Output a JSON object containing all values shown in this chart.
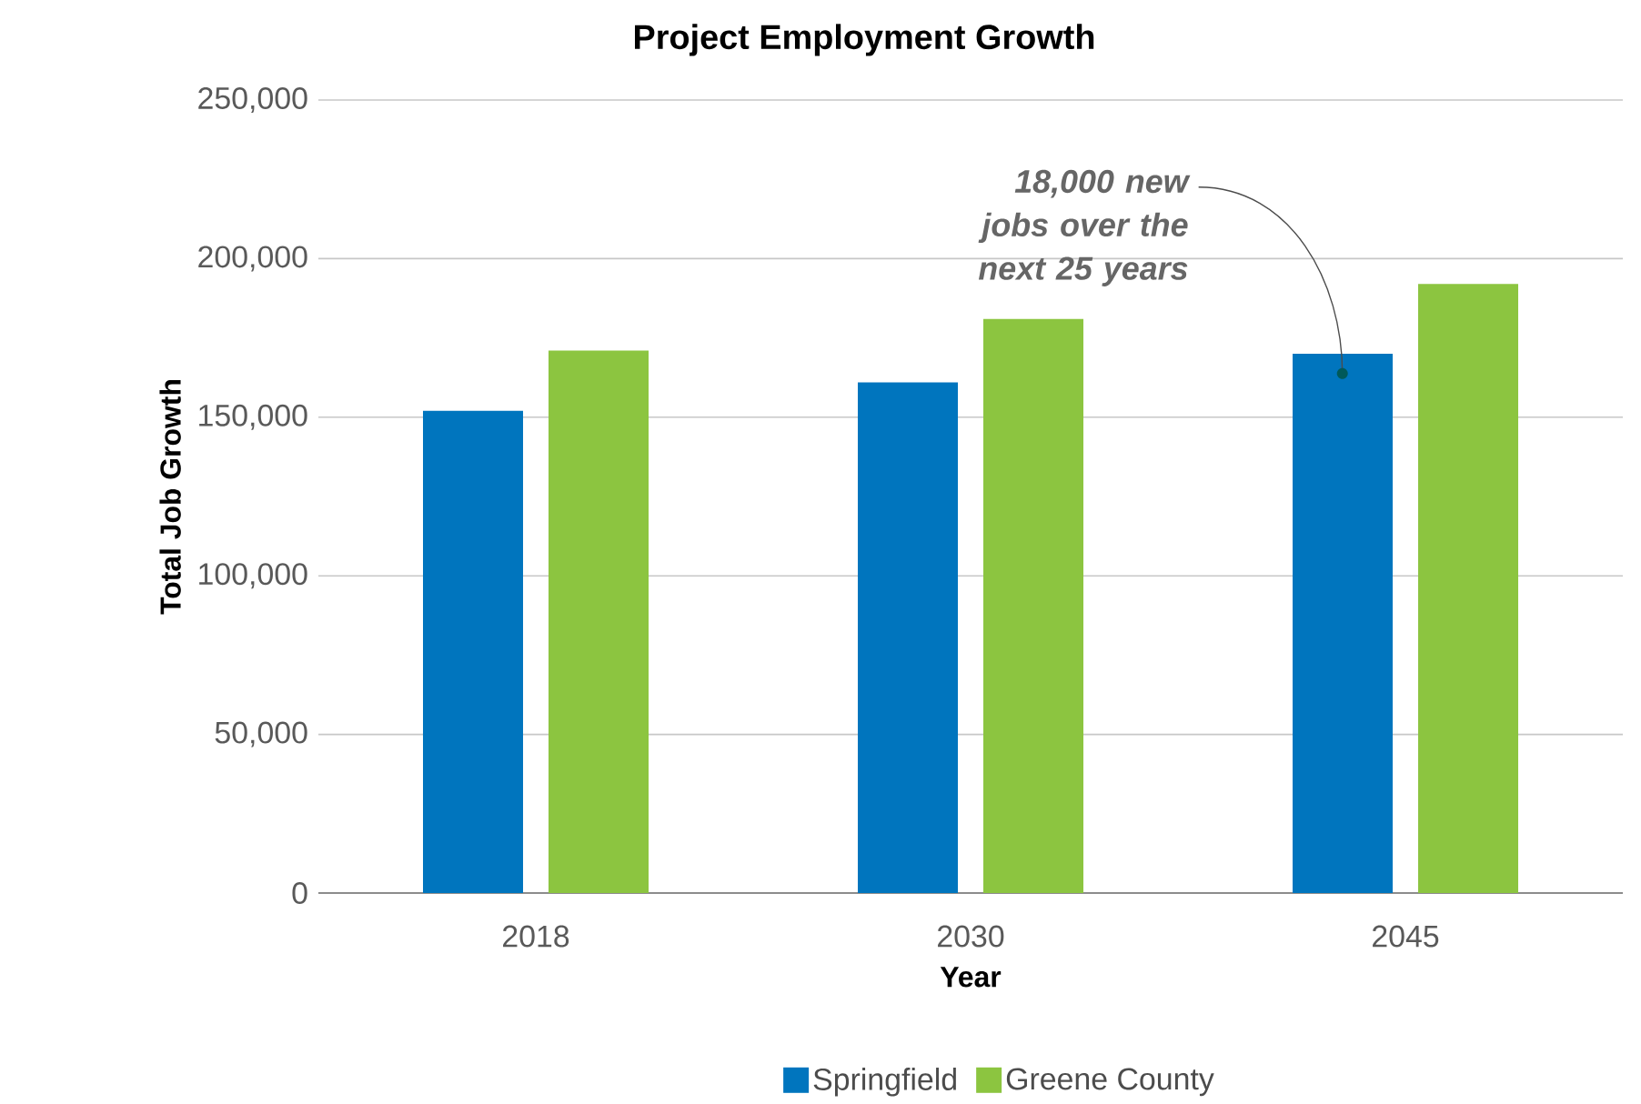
{
  "chart_data": {
    "type": "bar",
    "title": "Project Employment Growth",
    "xlabel": "Year",
    "ylabel": "Total Job Growth",
    "categories": [
      "2018",
      "2030",
      "2045"
    ],
    "series": [
      {
        "name": "Springfield",
        "color": "#0075be",
        "values": [
          152000,
          161000,
          170000
        ]
      },
      {
        "name": "Greene County",
        "color": "#8cc540",
        "values": [
          171000,
          181000,
          192000
        ]
      }
    ],
    "ylim": [
      0,
      250000
    ],
    "yticks": [
      0,
      {
        "value": 50000,
        "label": "50,000"
      },
      {
        "value": 100000,
        "label": "100,000"
      },
      {
        "value": 150000,
        "label": "150,000"
      },
      {
        "value": 200000,
        "label": "200,000"
      },
      {
        "value": 250000,
        "label": "250,000"
      }
    ],
    "grid": "y",
    "legend": "bottom",
    "annotations": [
      "18,000 new jobs over the next 25 years"
    ]
  }
}
